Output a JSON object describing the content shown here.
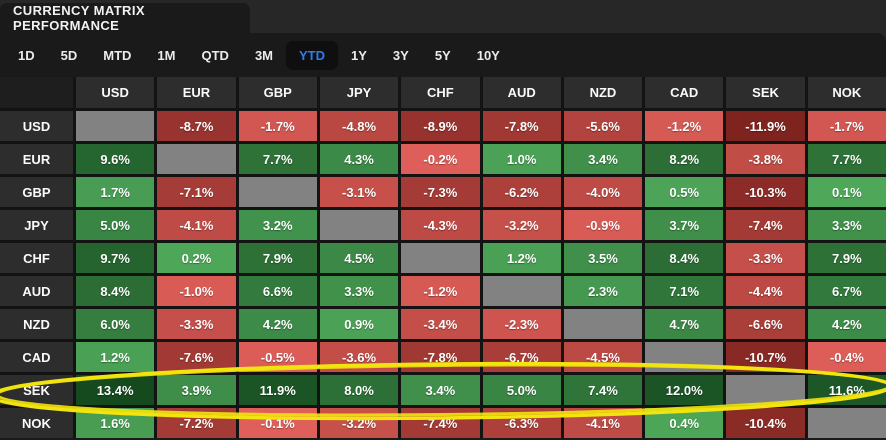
{
  "header": {
    "title": "CURRENCY MATRIX PERFORMANCE"
  },
  "period_selector": {
    "options": [
      "1D",
      "5D",
      "MTD",
      "1M",
      "QTD",
      "3M",
      "YTD",
      "1Y",
      "3Y",
      "5Y",
      "10Y"
    ],
    "active": "YTD",
    "active_text_color": "#2e7cf3",
    "active_bg_color": "#0f0f0f"
  },
  "chart_data": {
    "type": "heatmap",
    "title": "Currency Matrix Performance",
    "selected_period": "YTD",
    "unit": "%",
    "columns": [
      "USD",
      "EUR",
      "GBP",
      "JPY",
      "CHF",
      "AUD",
      "NZD",
      "CAD",
      "SEK",
      "NOK"
    ],
    "rows": [
      {
        "label": "USD",
        "values": [
          null,
          -8.7,
          -1.7,
          -4.8,
          -8.9,
          -7.8,
          -5.6,
          -1.2,
          -11.9,
          -1.7
        ]
      },
      {
        "label": "EUR",
        "values": [
          9.6,
          null,
          7.7,
          4.3,
          -0.2,
          1.0,
          3.4,
          8.2,
          -3.8,
          7.7
        ]
      },
      {
        "label": "GBP",
        "values": [
          1.7,
          -7.1,
          null,
          -3.1,
          -7.3,
          -6.2,
          -4.0,
          0.5,
          -10.3,
          0.1
        ]
      },
      {
        "label": "JPY",
        "values": [
          5.0,
          -4.1,
          3.2,
          null,
          -4.3,
          -3.2,
          -0.9,
          3.7,
          -7.4,
          3.3
        ]
      },
      {
        "label": "CHF",
        "values": [
          9.7,
          0.2,
          7.9,
          4.5,
          null,
          1.2,
          3.5,
          8.4,
          -3.3,
          7.9
        ]
      },
      {
        "label": "AUD",
        "values": [
          8.4,
          -1.0,
          6.6,
          3.3,
          -1.2,
          null,
          2.3,
          7.1,
          -4.4,
          6.7
        ]
      },
      {
        "label": "NZD",
        "values": [
          6.0,
          -3.3,
          4.2,
          0.9,
          -3.4,
          -2.3,
          null,
          4.7,
          -6.6,
          4.2
        ]
      },
      {
        "label": "CAD",
        "values": [
          1.2,
          -7.6,
          -0.5,
          -3.6,
          -7.8,
          -6.7,
          -4.5,
          null,
          -10.7,
          -0.4
        ]
      },
      {
        "label": "SEK",
        "values": [
          13.4,
          3.9,
          11.9,
          8.0,
          3.4,
          5.0,
          7.4,
          12.0,
          null,
          11.6
        ]
      },
      {
        "label": "NOK",
        "values": [
          1.6,
          -7.2,
          -0.1,
          -3.2,
          -7.4,
          -6.3,
          -4.1,
          0.4,
          -10.4,
          null
        ]
      }
    ],
    "color_scale": {
      "neutral": "#828282",
      "positive_min": "#4fa85a",
      "positive_max": "#154a1f",
      "positive_limit": 13.4,
      "negative_min": "#e0605a",
      "negative_max": "#7f231f",
      "negative_limit": 11.9
    },
    "annotation": {
      "shape": "ellipse",
      "highlighted_row": "SEK",
      "color": "#f2e40e"
    }
  }
}
